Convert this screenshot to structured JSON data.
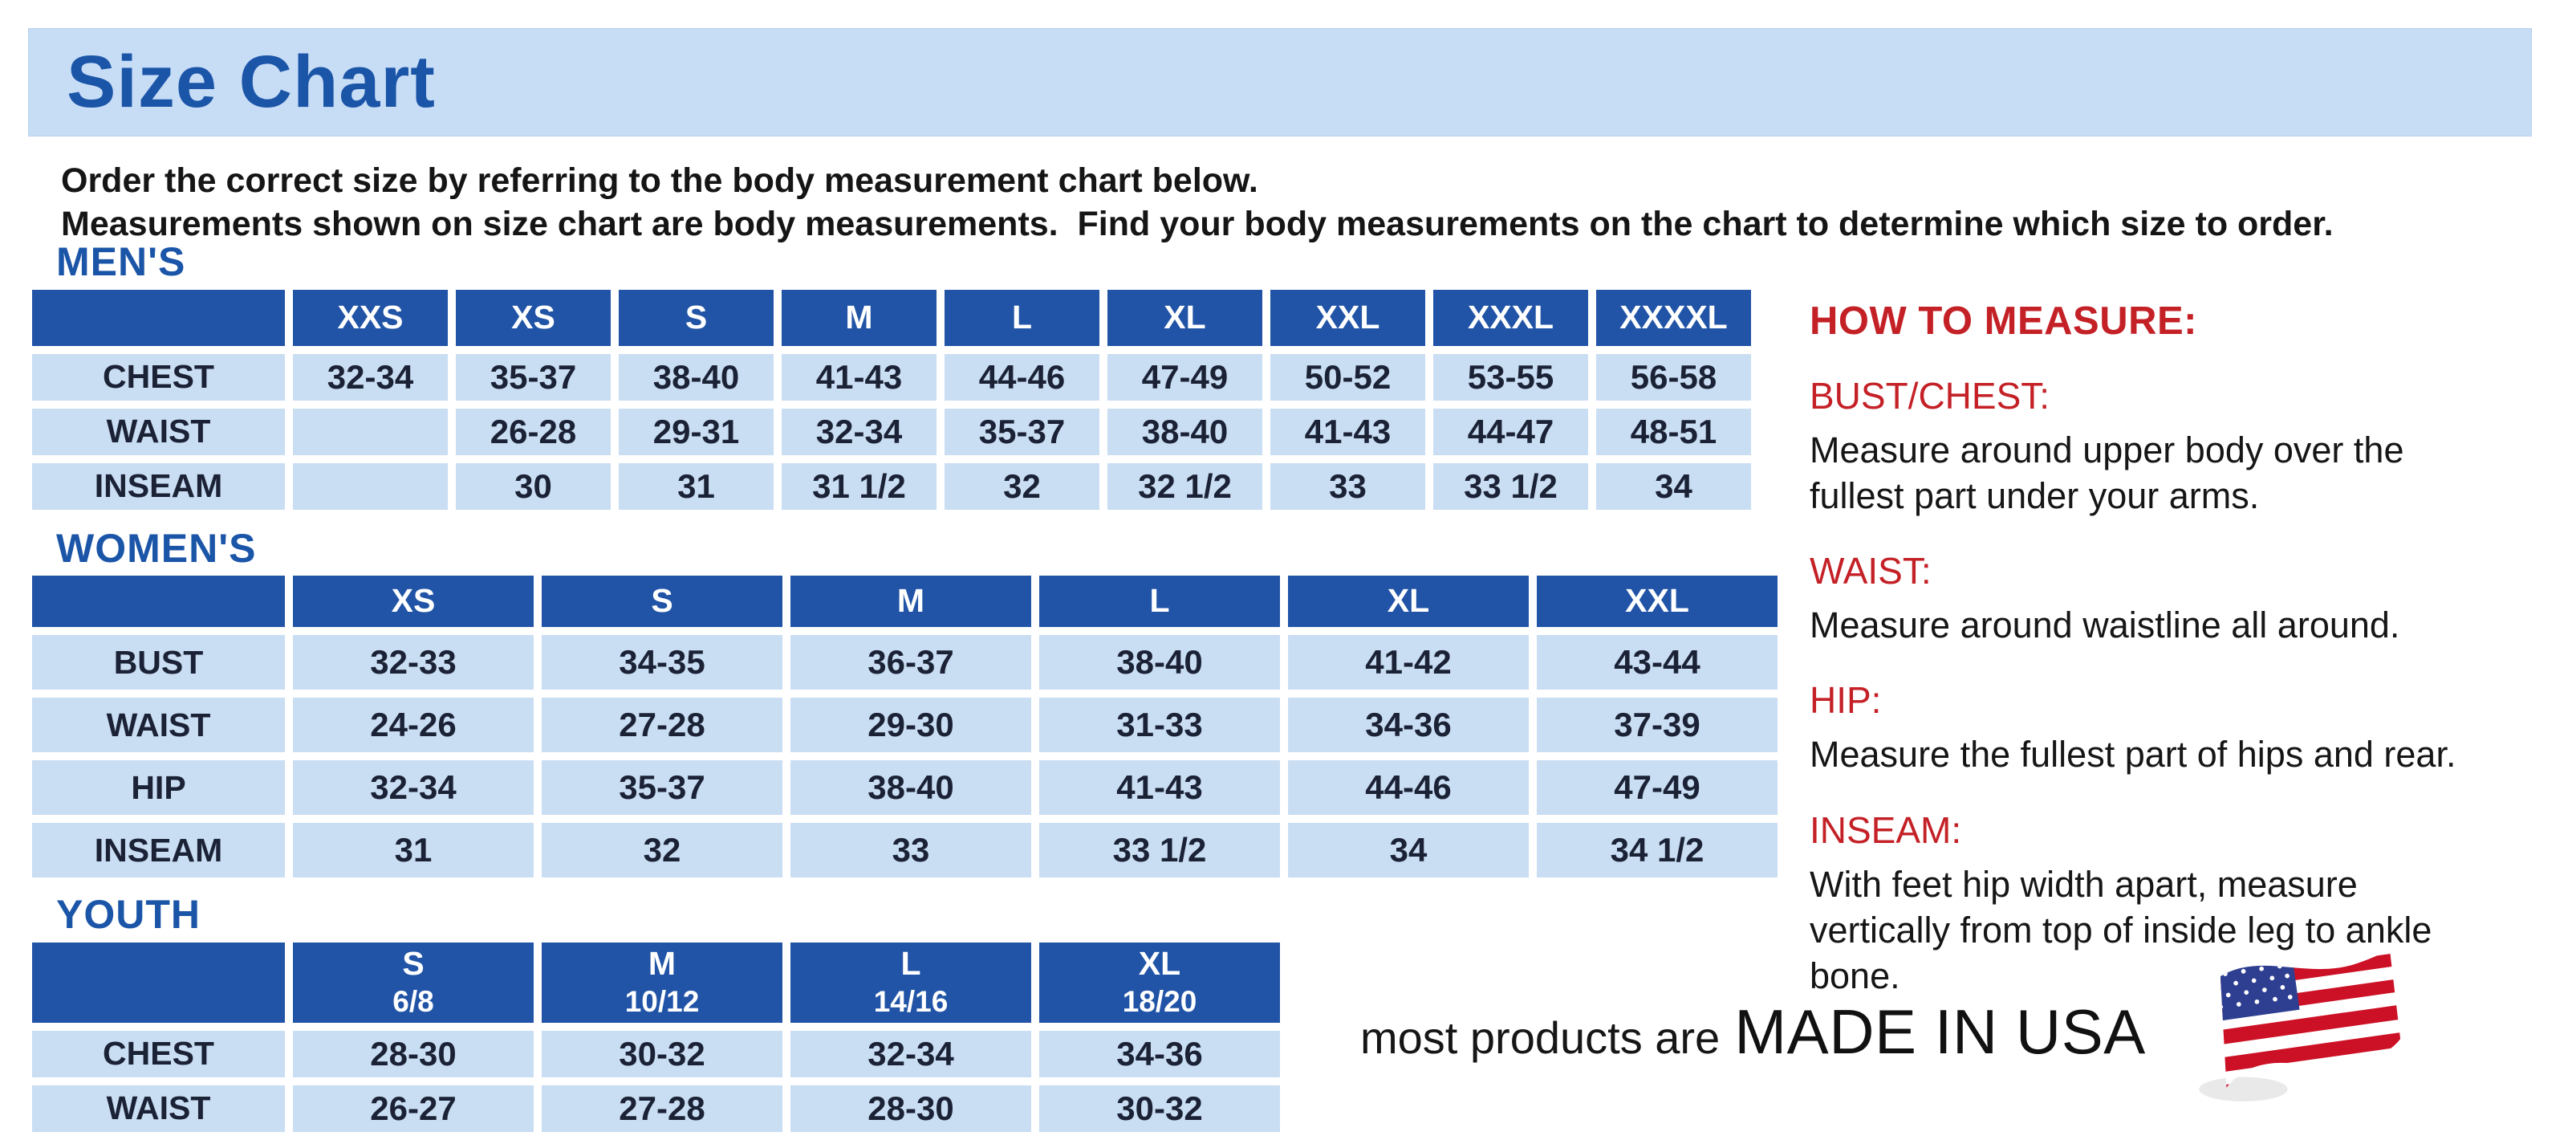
{
  "page": {
    "title": "Size Chart",
    "intro_line1": "Order the correct size by referring to the body measurement chart below.",
    "intro_line2": "Measurements shown on size chart are body measurements.  Find your body measurements on the chart to determine which size to order."
  },
  "colors": {
    "band_bg": "#c7ddf6",
    "heading_blue": "#1b55a8",
    "table_header_bg": "#2154a6",
    "table_cell_bg": "#c9ddf3",
    "table_text": "#1b2236",
    "accent_red": "#c42127"
  },
  "tables": {
    "men": {
      "section_label": "MEN'S",
      "columns": [
        {
          "label": "XXS",
          "sub": ""
        },
        {
          "label": "XS",
          "sub": ""
        },
        {
          "label": "S",
          "sub": ""
        },
        {
          "label": "M",
          "sub": ""
        },
        {
          "label": "L",
          "sub": ""
        },
        {
          "label": "XL",
          "sub": ""
        },
        {
          "label": "XXL",
          "sub": ""
        },
        {
          "label": "XXXL",
          "sub": ""
        },
        {
          "label": "XXXXL",
          "sub": ""
        }
      ],
      "rows": [
        {
          "label": "CHEST",
          "values": [
            "32-34",
            "35-37",
            "38-40",
            "41-43",
            "44-46",
            "47-49",
            "50-52",
            "53-55",
            "56-58"
          ]
        },
        {
          "label": "WAIST",
          "values": [
            "",
            "26-28",
            "29-31",
            "32-34",
            "35-37",
            "38-40",
            "41-43",
            "44-47",
            "48-51"
          ]
        },
        {
          "label": "INSEAM",
          "values": [
            "",
            "30",
            "31",
            "31 1/2",
            "32",
            "32 1/2",
            "33",
            "33 1/2",
            "34"
          ]
        }
      ]
    },
    "women": {
      "section_label": "WOMEN'S",
      "columns": [
        {
          "label": "XS",
          "sub": ""
        },
        {
          "label": "S",
          "sub": ""
        },
        {
          "label": "M",
          "sub": ""
        },
        {
          "label": "L",
          "sub": ""
        },
        {
          "label": "XL",
          "sub": ""
        },
        {
          "label": "XXL",
          "sub": ""
        }
      ],
      "rows": [
        {
          "label": "BUST",
          "values": [
            "32-33",
            "34-35",
            "36-37",
            "38-40",
            "41-42",
            "43-44"
          ]
        },
        {
          "label": "WAIST",
          "values": [
            "24-26",
            "27-28",
            "29-30",
            "31-33",
            "34-36",
            "37-39"
          ]
        },
        {
          "label": "HIP",
          "values": [
            "32-34",
            "35-37",
            "38-40",
            "41-43",
            "44-46",
            "47-49"
          ]
        },
        {
          "label": "INSEAM",
          "values": [
            "31",
            "32",
            "33",
            "33 1/2",
            "34",
            "34 1/2"
          ]
        }
      ]
    },
    "youth": {
      "section_label": "YOUTH",
      "columns": [
        {
          "label": "S",
          "sub": "6/8"
        },
        {
          "label": "M",
          "sub": "10/12"
        },
        {
          "label": "L",
          "sub": "14/16"
        },
        {
          "label": "XL",
          "sub": "18/20"
        }
      ],
      "rows": [
        {
          "label": "CHEST",
          "values": [
            "28-30",
            "30-32",
            "32-34",
            "34-36"
          ]
        },
        {
          "label": "WAIST",
          "values": [
            "26-27",
            "27-28",
            "28-30",
            "30-32"
          ]
        }
      ]
    }
  },
  "how_to_measure": {
    "title": "HOW TO MEASURE:",
    "items": [
      {
        "label": "BUST/CHEST:",
        "text": "Measure around upper body over the fullest part under your arms."
      },
      {
        "label": "WAIST:",
        "text": "Measure around waistline all around."
      },
      {
        "label": "HIP:",
        "text": "Measure the fullest part of hips and rear."
      },
      {
        "label": "INSEAM:",
        "text": "With feet hip width apart, measure vertically from top of inside leg to ankle bone."
      }
    ]
  },
  "footer": {
    "prefix": "most products are",
    "main": "MADE IN USA",
    "flag_icon": "us-flag-icon"
  }
}
